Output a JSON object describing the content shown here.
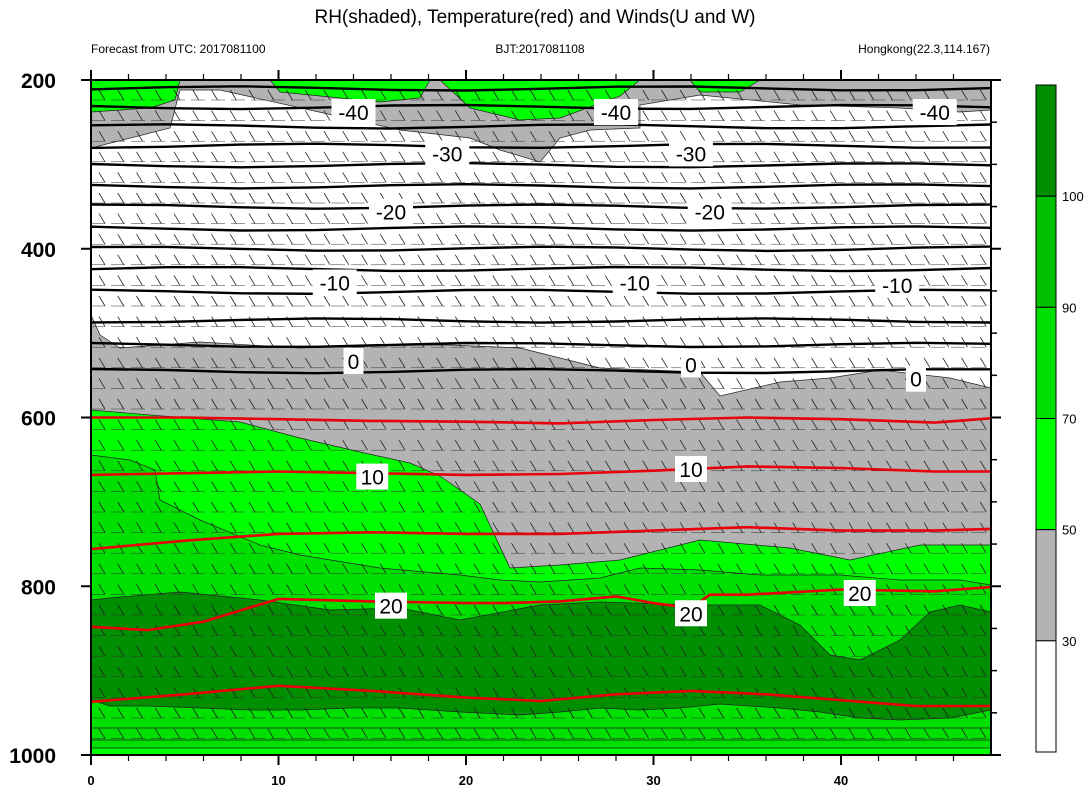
{
  "chart_data": {
    "type": "contour",
    "title": "RH(shaded), Temperature(red) and Winds(U and W)",
    "subtitle_left": "Forecast from UTC: 2017081100",
    "subtitle_center": "BJT:2017081108",
    "subtitle_right": "Hongkong(22.3,114.167)",
    "x_ticks": [
      "0",
      "10",
      "20",
      "30",
      "40"
    ],
    "x_tick_values": [
      0,
      10,
      20,
      30,
      40
    ],
    "xlim": [
      0,
      48
    ],
    "y_ticks": [
      "200",
      "400",
      "600",
      "800",
      "1000"
    ],
    "y_tick_values": [
      200,
      400,
      600,
      800,
      1000
    ],
    "ylim": [
      200,
      1000
    ],
    "colorbar": {
      "labels": [
        "30",
        "50",
        "70",
        "90",
        "100"
      ],
      "levels": [
        30,
        50,
        70,
        90,
        100
      ],
      "colors": [
        "#ffffff",
        "#b3b3b3",
        "#00ff00",
        "#00e000",
        "#00c000",
        "#008f00"
      ]
    },
    "temperature_contour_labels": [
      {
        "text": "-40",
        "x": 14,
        "p": 238
      },
      {
        "text": "-40",
        "x": 28,
        "p": 238
      },
      {
        "text": "-40",
        "x": 45,
        "p": 238
      },
      {
        "text": "-30",
        "x": 19,
        "p": 287
      },
      {
        "text": "-30",
        "x": 32,
        "p": 287
      },
      {
        "text": "-20",
        "x": 16,
        "p": 356
      },
      {
        "text": "-20",
        "x": 33,
        "p": 356
      },
      {
        "text": "-10",
        "x": 13,
        "p": 440
      },
      {
        "text": "-10",
        "x": 29,
        "p": 440
      },
      {
        "text": "-10",
        "x": 43,
        "p": 443
      },
      {
        "text": "0",
        "x": 14,
        "p": 533
      },
      {
        "text": "0",
        "x": 32,
        "p": 537
      },
      {
        "text": "0",
        "x": 44,
        "p": 554
      },
      {
        "text": "10",
        "x": 15,
        "p": 670
      },
      {
        "text": "10",
        "x": 32,
        "p": 661
      },
      {
        "text": "20",
        "x": 16,
        "p": 823
      },
      {
        "text": "20",
        "x": 32,
        "p": 832
      },
      {
        "text": "20",
        "x": 41,
        "p": 808
      }
    ],
    "temperature_lines": [
      {
        "level": 10,
        "x": [
          0,
          5,
          10,
          15,
          20,
          25,
          30,
          35,
          40,
          45,
          48
        ],
        "p": [
          668,
          666,
          664,
          666,
          668,
          667,
          663,
          658,
          660,
          664,
          664
        ]
      },
      {
        "level": 15,
        "x": [
          0,
          5,
          10,
          15,
          20,
          25,
          30,
          35,
          40,
          45,
          48
        ],
        "p": [
          756,
          746,
          738,
          736,
          738,
          738,
          734,
          730,
          734,
          734,
          732
        ]
      },
      {
        "level": 20,
        "x": [
          0,
          3,
          6,
          10,
          15,
          20,
          22,
          25,
          28,
          30,
          32,
          33,
          35,
          40,
          45,
          48
        ],
        "p": [
          848,
          852,
          842,
          815,
          818,
          820,
          820,
          818,
          812,
          820,
          826,
          810,
          810,
          804,
          806,
          801
        ]
      },
      {
        "level": 25,
        "x": [
          0,
          5,
          10,
          15,
          20,
          24,
          28,
          32,
          36,
          40,
          44,
          48
        ],
        "p": [
          937,
          928,
          918,
          924,
          932,
          936,
          928,
          924,
          928,
          935,
          942,
          942
        ]
      },
      {
        "level": 5,
        "x": [
          0,
          5,
          10,
          15,
          20,
          25,
          30,
          35,
          40,
          45,
          48
        ],
        "p": [
          600,
          600,
          602,
          604,
          605,
          607,
          603,
          600,
          602,
          606,
          601
        ]
      }
    ],
    "black_isotherms_p": [
      210,
      232,
      255,
      278,
      301,
      326,
      350,
      376,
      400,
      424,
      451,
      485,
      514,
      545
    ]
  }
}
